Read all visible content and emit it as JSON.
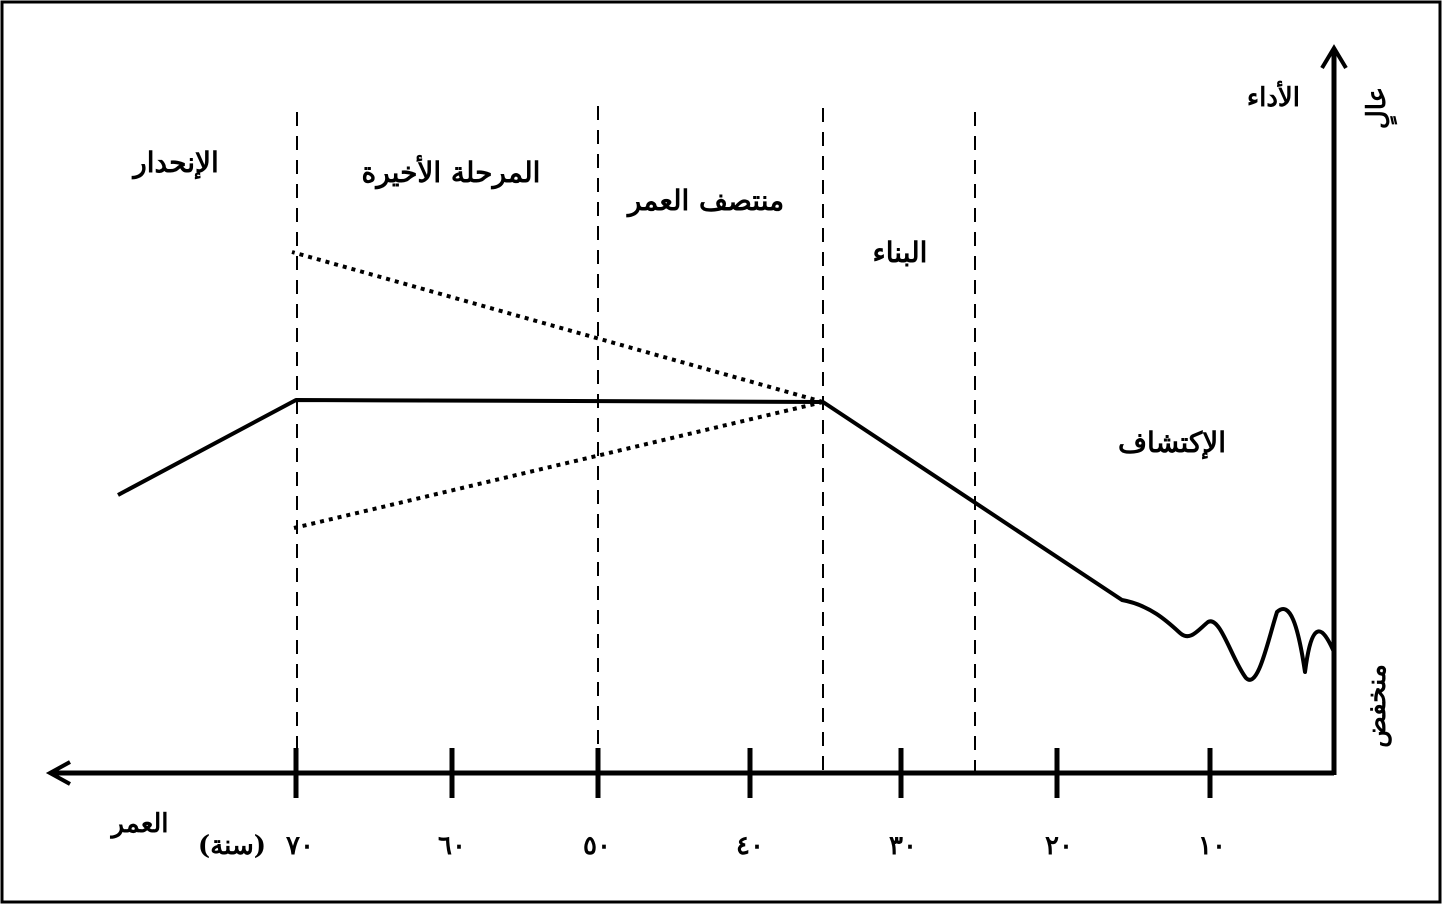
{
  "y_axis": {
    "title": "الأداء",
    "high_label": "عالٍ",
    "low_label": "منخفض"
  },
  "x_axis": {
    "title": "العمر",
    "unit": "(سنة)",
    "ticks": [
      "١٠",
      "٢٠",
      "٣٠",
      "٤٠",
      "٥٠",
      "٦٠",
      "٧٠"
    ]
  },
  "phases": {
    "exploration": "الإكتشاف",
    "building": "البناء",
    "midcareer": "منتصف العمر",
    "late": "المرحلة الأخيرة",
    "decline": "الإنحدار"
  },
  "colors": {
    "ink": "#000000",
    "background": "#ffffff"
  }
}
